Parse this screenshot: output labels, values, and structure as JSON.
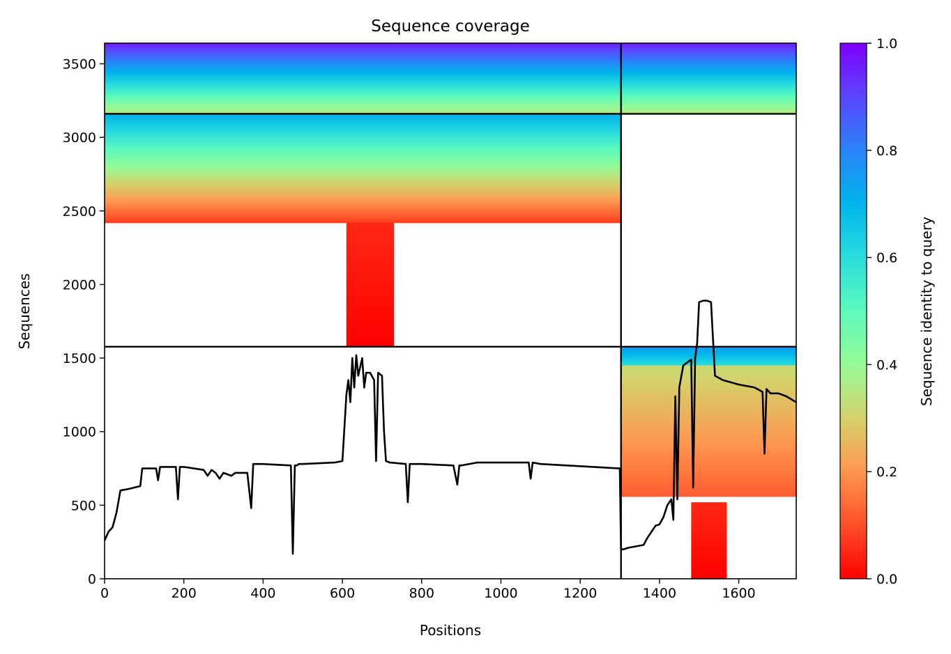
{
  "chart_data": {
    "type": "heatmap",
    "title": "Sequence coverage",
    "xlabel": "Positions",
    "ylabel": "Sequences",
    "xlim": [
      0,
      1745
    ],
    "ylim": [
      0,
      3640
    ],
    "xticks": [
      "0",
      "200",
      "400",
      "600",
      "800",
      "1000",
      "1200",
      "1400",
      "1600"
    ],
    "xtick_values": [
      0,
      200,
      400,
      600,
      800,
      1000,
      1200,
      1400,
      1600
    ],
    "yticks": [
      "0",
      "500",
      "1000",
      "1500",
      "2000",
      "2500",
      "3000",
      "3500"
    ],
    "ytick_values": [
      0,
      500,
      1000,
      1500,
      2000,
      2500,
      3000,
      3500
    ],
    "grid": false,
    "chain_boundary_x": [
      1303
    ],
    "chain_boundary_y": [
      1577,
      3160
    ],
    "colorbar": {
      "label": "Sequence identity to query",
      "range": [
        0,
        1
      ],
      "ticks": [
        "0.0",
        "0.2",
        "0.4",
        "0.6",
        "0.8",
        "1.0"
      ],
      "tick_values": [
        0,
        0.2,
        0.4,
        0.6,
        0.8,
        1.0
      ],
      "colormap": "rainbow_r"
    },
    "coverage_blocks": [
      {
        "x": [
          0,
          1303
        ],
        "y": [
          3160,
          3640
        ],
        "identity": [
          0.35,
          0.95
        ]
      },
      {
        "x": [
          1303,
          1745
        ],
        "y": [
          3160,
          3640
        ],
        "identity": [
          0.35,
          0.95
        ]
      },
      {
        "x": [
          0,
          1303
        ],
        "y": [
          2420,
          3160
        ],
        "identity": [
          0.08,
          0.7
        ]
      },
      {
        "x": [
          610,
          730
        ],
        "y": [
          1577,
          2420
        ],
        "identity": [
          0.0,
          0.05
        ]
      },
      {
        "x": [
          1303,
          1745
        ],
        "y": [
          1450,
          1577
        ],
        "identity": [
          0.6,
          0.75
        ]
      },
      {
        "x": [
          1303,
          1745
        ],
        "y": [
          560,
          1450
        ],
        "identity": [
          0.12,
          0.32
        ]
      },
      {
        "x": [
          1480,
          1570
        ],
        "y": [
          0,
          520
        ],
        "identity": [
          0.0,
          0.05
        ]
      }
    ],
    "coverage_line": {
      "x": [
        0,
        10,
        20,
        30,
        40,
        60,
        90,
        95,
        130,
        135,
        140,
        180,
        185,
        190,
        200,
        250,
        260,
        270,
        280,
        290,
        300,
        320,
        330,
        340,
        360,
        370,
        375,
        380,
        400,
        470,
        475,
        480,
        485,
        490,
        500,
        580,
        600,
        610,
        615,
        620,
        625,
        630,
        635,
        640,
        650,
        655,
        660,
        670,
        680,
        685,
        690,
        700,
        705,
        710,
        720,
        760,
        765,
        770,
        800,
        880,
        890,
        895,
        900,
        940,
        1000,
        1070,
        1075,
        1080,
        1100,
        1300,
        1303,
        1310,
        1320,
        1340,
        1360,
        1370,
        1380,
        1390,
        1400,
        1410,
        1420,
        1430,
        1435,
        1440,
        1445,
        1450,
        1460,
        1470,
        1480,
        1485,
        1490,
        1495,
        1500,
        1510,
        1520,
        1530,
        1540,
        1560,
        1600,
        1640,
        1660,
        1665,
        1670,
        1680,
        1700,
        1720,
        1745
      ],
      "y": [
        260,
        320,
        350,
        450,
        600,
        610,
        630,
        750,
        750,
        670,
        760,
        760,
        540,
        760,
        760,
        740,
        700,
        740,
        720,
        680,
        720,
        700,
        720,
        720,
        720,
        480,
        780,
        780,
        780,
        770,
        170,
        770,
        770,
        780,
        780,
        790,
        800,
        1250,
        1350,
        1200,
        1500,
        1300,
        1520,
        1380,
        1500,
        1300,
        1400,
        1400,
        1350,
        800,
        1400,
        1380,
        1000,
        800,
        790,
        780,
        520,
        780,
        780,
        770,
        640,
        770,
        770,
        790,
        790,
        790,
        680,
        790,
        780,
        750,
        200,
        200,
        210,
        220,
        230,
        280,
        320,
        360,
        370,
        420,
        500,
        540,
        400,
        1240,
        540,
        1300,
        1450,
        1470,
        1490,
        620,
        1500,
        1600,
        1880,
        1890,
        1890,
        1880,
        1380,
        1350,
        1320,
        1300,
        1270,
        850,
        1290,
        1260,
        1260,
        1240,
        1200
      ]
    }
  }
}
